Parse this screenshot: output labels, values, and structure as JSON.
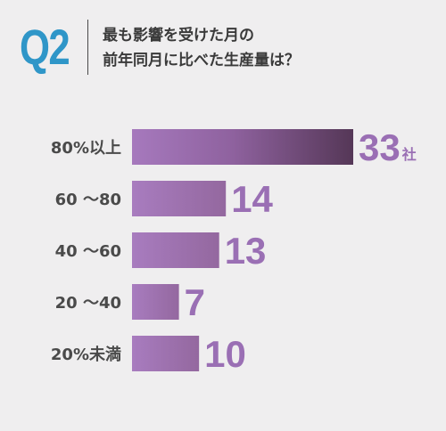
{
  "header": {
    "q_number": "Q2",
    "question_line1": "最も影響を受けた月の",
    "question_line2": "前年同月に比べた生産量は？"
  },
  "colors": {
    "accent_blue": "#2f96c8",
    "bar_purple": "#a078b8",
    "bar_dark": "#5a3a5e",
    "value_purple": "#9a6fb4",
    "label_gray": "#4a4a4a",
    "background": "#efeeef"
  },
  "chart_data": {
    "type": "bar",
    "orientation": "horizontal",
    "categories": [
      "80%以上",
      "60 〜80",
      "40 〜60",
      "20 〜40",
      "20%未満"
    ],
    "values": [
      33,
      14,
      13,
      7,
      10
    ],
    "unit": "社",
    "title": "",
    "xlabel": "",
    "ylabel": "",
    "grid": false,
    "legend": "none"
  }
}
